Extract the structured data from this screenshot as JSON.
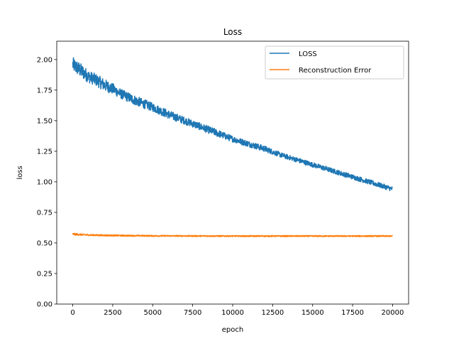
{
  "chart_data": {
    "type": "line",
    "title": "Loss",
    "xlabel": "epoch",
    "ylabel": "loss",
    "xlim": [
      -1000,
      21000
    ],
    "ylim": [
      0.0,
      2.15
    ],
    "grid": false,
    "legend_placement": "top-right",
    "xticks": [
      0,
      2500,
      5000,
      7500,
      10000,
      12500,
      15000,
      17500,
      20000
    ],
    "yticks": [
      0.0,
      0.25,
      0.5,
      0.75,
      1.0,
      1.25,
      1.5,
      1.75,
      2.0
    ],
    "xtick_labels": [
      "0",
      "2500",
      "5000",
      "7500",
      "10000",
      "12500",
      "15000",
      "17500",
      "20000"
    ],
    "ytick_labels": [
      "0.00",
      "0.25",
      "0.50",
      "0.75",
      "1.00",
      "1.25",
      "1.50",
      "1.75",
      "2.00"
    ],
    "series": [
      {
        "name": "LOSS",
        "color": "#1f77b4",
        "x": [
          0,
          500,
          1000,
          1500,
          2000,
          2500,
          3000,
          4000,
          5000,
          6000,
          7000,
          8000,
          9000,
          10000,
          11000,
          12000,
          13000,
          14000,
          15000,
          16000,
          17000,
          18000,
          19000,
          20000
        ],
        "y": [
          1.96,
          1.91,
          1.86,
          1.83,
          1.79,
          1.76,
          1.72,
          1.66,
          1.61,
          1.55,
          1.5,
          1.45,
          1.4,
          1.35,
          1.31,
          1.27,
          1.22,
          1.18,
          1.14,
          1.1,
          1.06,
          1.02,
          0.98,
          0.94
        ],
        "band": [
          0.06,
          0.06,
          0.05,
          0.05,
          0.05,
          0.045,
          0.04,
          0.04,
          0.035,
          0.035,
          0.03,
          0.03,
          0.03,
          0.025,
          0.025,
          0.025,
          0.02,
          0.02,
          0.02,
          0.02,
          0.02,
          0.02,
          0.02,
          0.02
        ]
      },
      {
        "name": "Reconstruction Error",
        "color": "#ff7f0e",
        "x": [
          0,
          500,
          1000,
          2000,
          3000,
          4000,
          5000,
          7500,
          10000,
          12500,
          15000,
          17500,
          20000
        ],
        "y": [
          0.572,
          0.568,
          0.565,
          0.562,
          0.56,
          0.559,
          0.558,
          0.557,
          0.556,
          0.556,
          0.556,
          0.556,
          0.556
        ],
        "band": [
          0.008,
          0.007,
          0.006,
          0.006,
          0.006,
          0.005,
          0.005,
          0.005,
          0.005,
          0.005,
          0.005,
          0.005,
          0.005
        ]
      }
    ]
  }
}
